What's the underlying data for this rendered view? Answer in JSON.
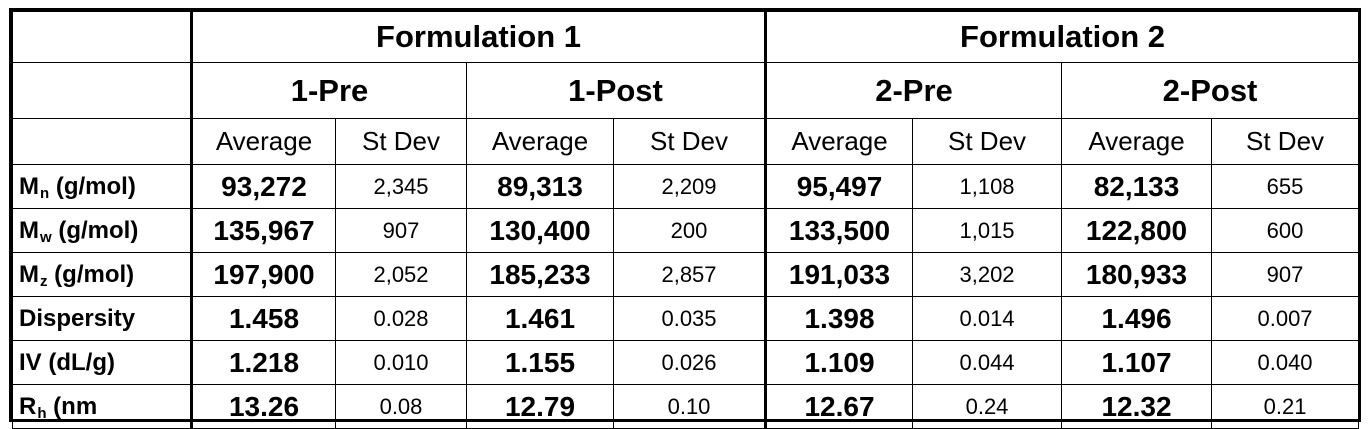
{
  "header": {
    "formulations": [
      "Formulation 1",
      "Formulation 2"
    ],
    "conditions": [
      "1-Pre",
      "1-Post",
      "2-Pre",
      "2-Post"
    ],
    "stat_average": "Average",
    "stat_stdev": "St Dev"
  },
  "rows": [
    {
      "label_main": "M",
      "label_sub": "n",
      "label_rest": " (g/mol)",
      "values": [
        "93,272",
        "2,345",
        "89,313",
        "2,209",
        "95,497",
        "1,108",
        "82,133",
        "655"
      ]
    },
    {
      "label_main": "M",
      "label_sub": "w",
      "label_rest": " (g/mol)",
      "values": [
        "135,967",
        "907",
        "130,400",
        "200",
        "133,500",
        "1,015",
        "122,800",
        "600"
      ]
    },
    {
      "label_main": "M",
      "label_sub": "z",
      "label_rest": " (g/mol)",
      "values": [
        "197,900",
        "2,052",
        "185,233",
        "2,857",
        "191,033",
        "3,202",
        "180,933",
        "907"
      ]
    },
    {
      "label_main": "Dispersity",
      "label_sub": "",
      "label_rest": "",
      "values": [
        "1.458",
        "0.028",
        "1.461",
        "0.035",
        "1.398",
        "0.014",
        "1.496",
        "0.007"
      ]
    },
    {
      "label_main": "IV (dL/g)",
      "label_sub": "",
      "label_rest": "",
      "values": [
        "1.218",
        "0.010",
        "1.155",
        "0.026",
        "1.109",
        "0.044",
        "1.107",
        "0.040"
      ]
    },
    {
      "label_main": "R",
      "label_sub": "h",
      "label_rest": " (nm",
      "values": [
        "13.26",
        "0.08",
        "12.79",
        "0.10",
        "12.67",
        "0.24",
        "12.32",
        "0.21"
      ]
    }
  ]
}
